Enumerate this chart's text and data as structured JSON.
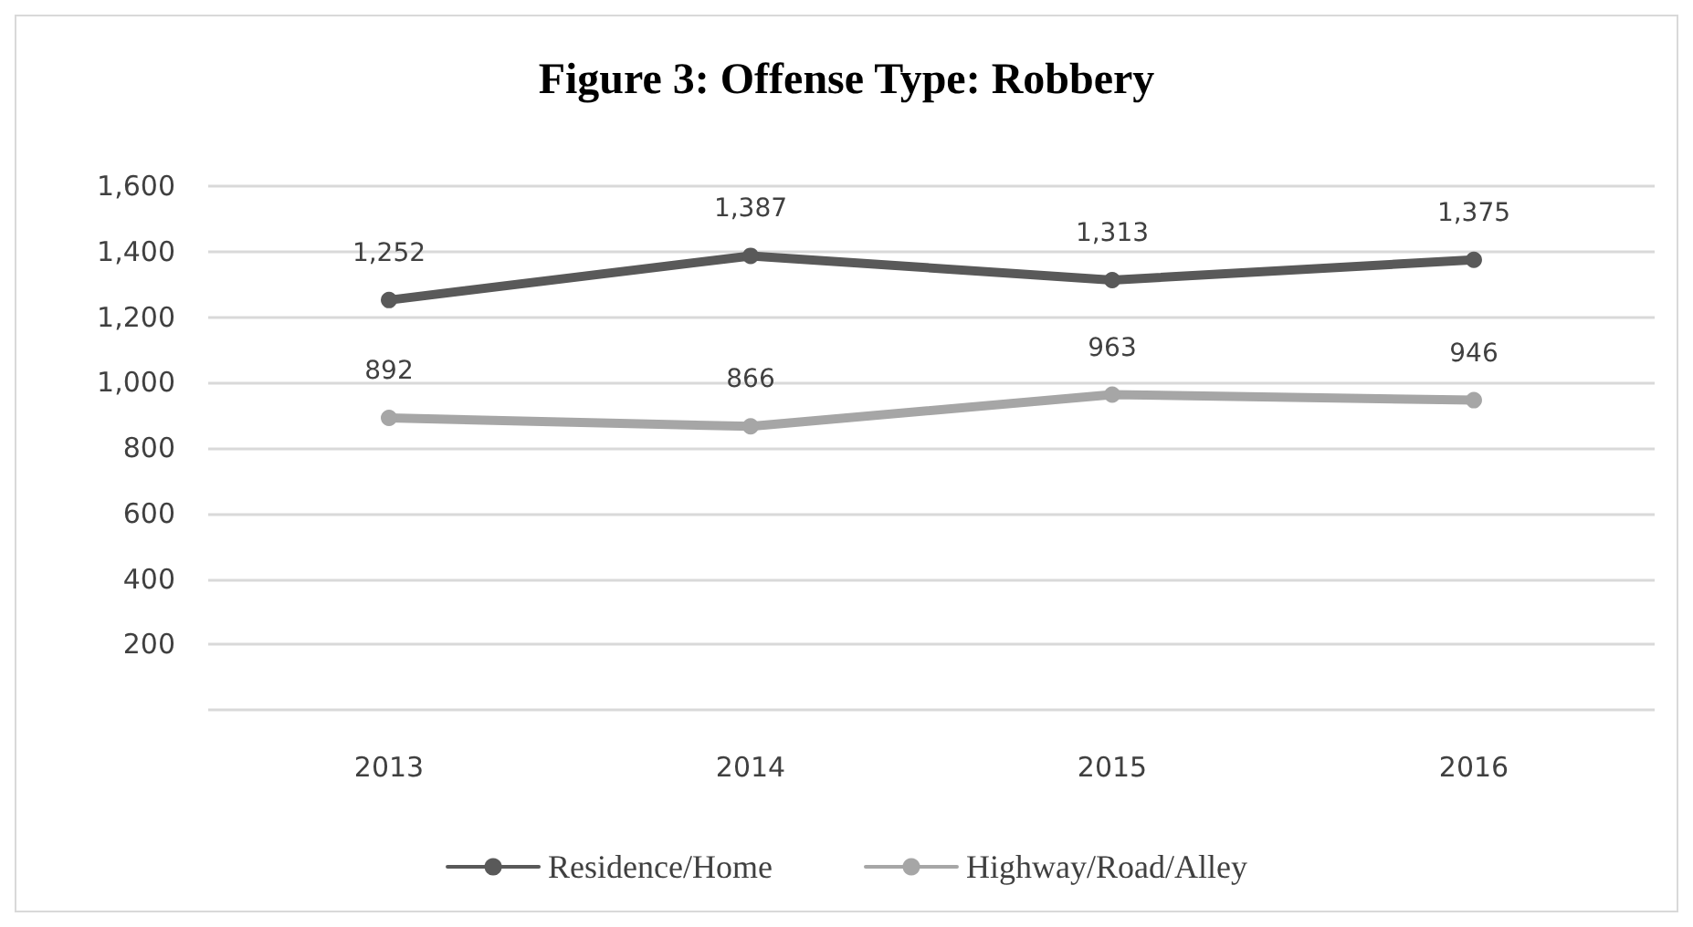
{
  "chart_data": {
    "type": "line",
    "title": "Figure 3: Offense Type: Robbery",
    "categories": [
      "2013",
      "2014",
      "2015",
      "2016"
    ],
    "series": [
      {
        "name": "Residence/Home",
        "color": "#595959",
        "values": [
          1252,
          1387,
          1313,
          1375
        ],
        "value_labels": [
          "1,252",
          "1,387",
          "1,313",
          "1,375"
        ]
      },
      {
        "name": "Highway/Road/Alley",
        "color": "#a6a6a6",
        "values": [
          892,
          866,
          963,
          946
        ],
        "value_labels": [
          "892",
          "866",
          "963",
          "946"
        ]
      }
    ],
    "ylim": [
      0,
      1600
    ],
    "yticks": [
      {
        "value": 0,
        "label": null
      },
      {
        "value": 200,
        "label": "200"
      },
      {
        "value": 400,
        "label": "400"
      },
      {
        "value": 600,
        "label": "600"
      },
      {
        "value": 800,
        "label": "800"
      },
      {
        "value": 1000,
        "label": "1,000"
      },
      {
        "value": 1200,
        "label": "1,200"
      },
      {
        "value": 1400,
        "label": "1,400"
      },
      {
        "value": 1600,
        "label": "1,600"
      }
    ],
    "grid": "y",
    "legend": "bottom",
    "marker": "circle",
    "line_style": "solid"
  }
}
